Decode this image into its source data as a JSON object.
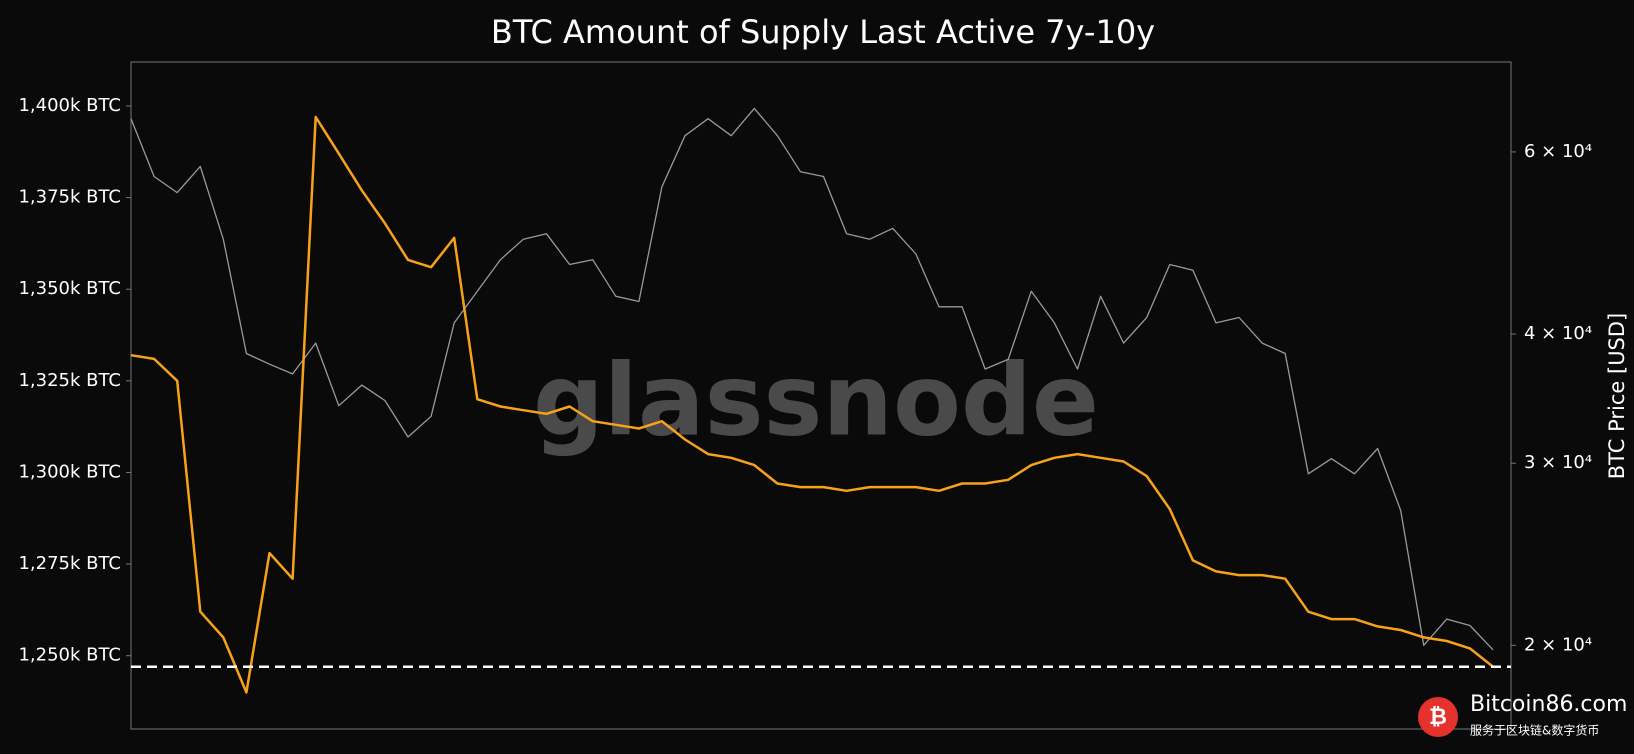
{
  "chart_data": {
    "type": "line",
    "title": "BTC Amount of Supply Last Active 7y-10y",
    "y2_label": "BTC Price [USD]",
    "categories": [
      null,
      null,
      null,
      null,
      null,
      null,
      null,
      null,
      null,
      null,
      null,
      null,
      null,
      null,
      null,
      null,
      null,
      null,
      null,
      null,
      null,
      null,
      null,
      null,
      null,
      null,
      null,
      null,
      null,
      null,
      null,
      null,
      null,
      null,
      null,
      null,
      null,
      null,
      null,
      null,
      null,
      null,
      null,
      null,
      null,
      null,
      null,
      null,
      null,
      null,
      null,
      null,
      null,
      null,
      null,
      null,
      null,
      null,
      null,
      null
    ],
    "series": [
      {
        "name": "Supply Last Active 7y-10y",
        "color": "#f7a21b",
        "axis": "y",
        "values": [
          1332,
          1331,
          1325,
          1262,
          1255,
          1240,
          1278,
          1271,
          1397,
          1387,
          1377,
          1368,
          1358,
          1356,
          1364,
          1320,
          1318,
          1317,
          1316,
          1318,
          1314,
          1313,
          1312,
          1314,
          1309,
          1305,
          1304,
          1302,
          1297,
          1296,
          1296,
          1295,
          1296,
          1296,
          1296,
          1295,
          1297,
          1297,
          1298,
          1302,
          1304,
          1305,
          1304,
          1303,
          1299,
          1290,
          1276,
          1273,
          1272,
          1272,
          1271,
          1262,
          1260,
          1260,
          1258,
          1257,
          1255,
          1254,
          1252,
          1247
        ]
      },
      {
        "name": "BTC Price",
        "color": "#9a9a9a",
        "axis": "y2",
        "values": [
          64600,
          56800,
          54800,
          58100,
          49400,
          38300,
          37400,
          36600,
          39200,
          34100,
          35700,
          34500,
          31800,
          33300,
          41000,
          44000,
          47200,
          49400,
          50000,
          46700,
          47200,
          43500,
          43000,
          55500,
          62200,
          64600,
          62200,
          66100,
          62200,
          57400,
          56800,
          50000,
          49400,
          50600,
          47800,
          42500,
          42500,
          37000,
          37800,
          44000,
          41000,
          37000,
          43500,
          39200,
          41500,
          46700,
          46100,
          41000,
          41500,
          39200,
          38300,
          29300,
          30300,
          29300,
          31000,
          27000,
          20000,
          21200,
          20900,
          19800
        ]
      }
    ],
    "ylim": [
      1230,
      1412
    ],
    "yticks": [
      {
        "value": 1250,
        "label": "1,250k BTC"
      },
      {
        "value": 1275,
        "label": "1,275k BTC"
      },
      {
        "value": 1300,
        "label": "1,300k BTC"
      },
      {
        "value": 1325,
        "label": "1,325k BTC"
      },
      {
        "value": 1350,
        "label": "1,350k BTC"
      },
      {
        "value": 1375,
        "label": "1,375k BTC"
      },
      {
        "value": 1400,
        "label": "1,400k BTC"
      }
    ],
    "y2lim": [
      16600,
      73300
    ],
    "y2scale": "log",
    "y2ticks": [
      {
        "value": 20000,
        "label": "2 × 10⁴"
      },
      {
        "value": 30000,
        "label": "3 × 10⁴"
      },
      {
        "value": 40000,
        "label": "4 × 10⁴"
      },
      {
        "value": 60000,
        "label": "6 × 10⁴"
      }
    ],
    "reference_line": {
      "value": 1247,
      "color": "#ffffff"
    },
    "watermark": "glassnode"
  },
  "overlay": {
    "site": "Bitcoin86.com",
    "tagline": "服务于区块链&数字货币"
  }
}
